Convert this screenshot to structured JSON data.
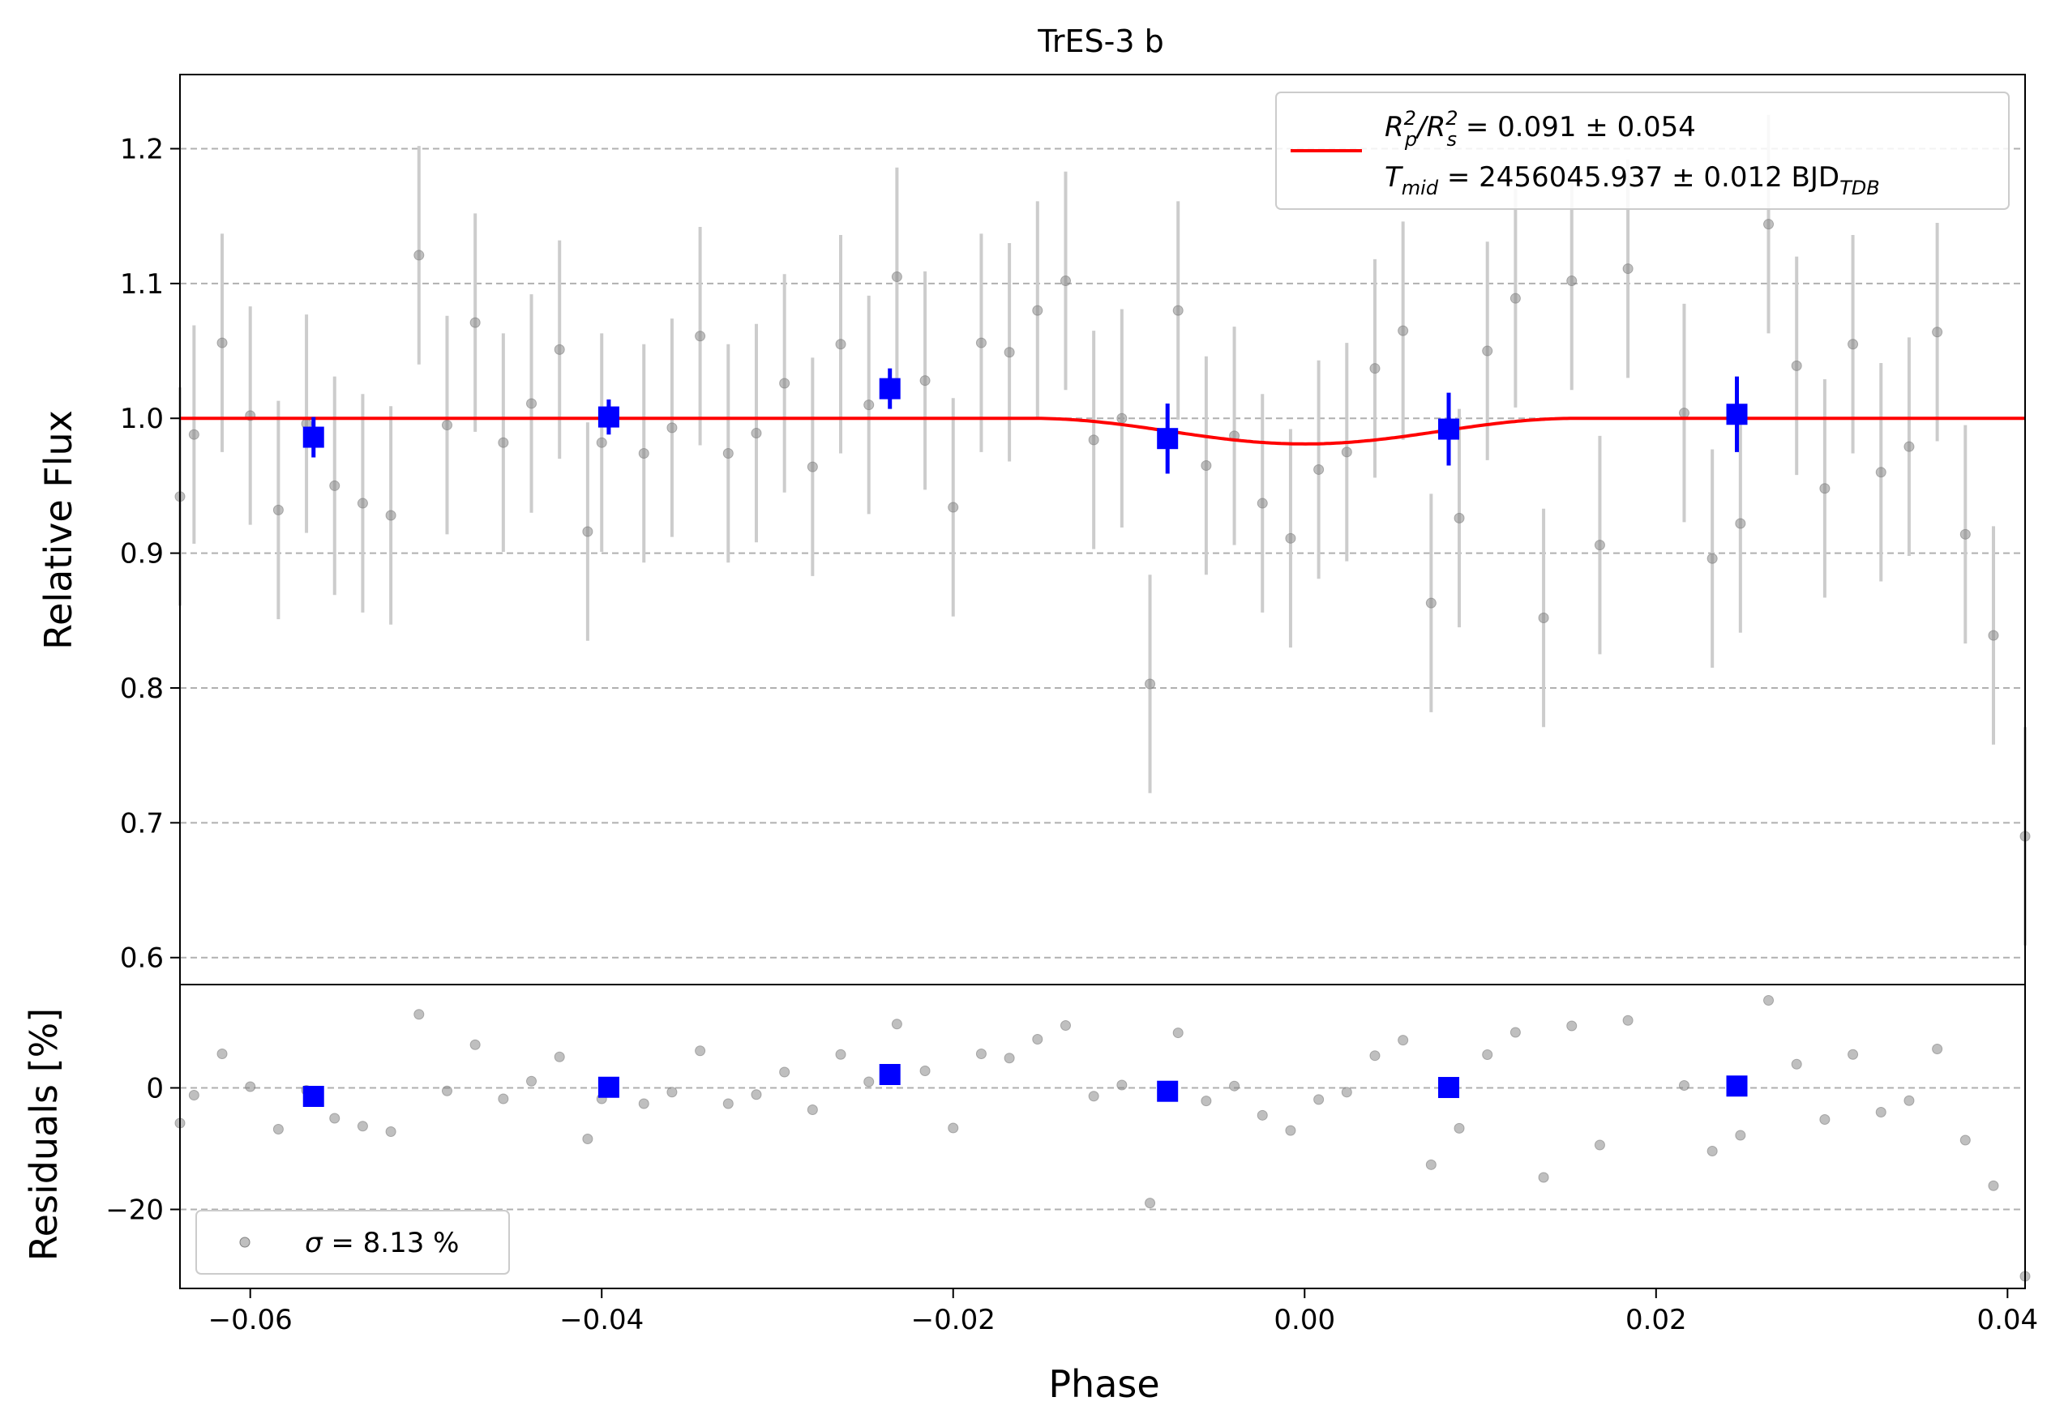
{
  "chart_data": [
    {
      "name": "flux-panel",
      "type": "scatter",
      "title": "TrES-3 b",
      "xlabel": "Phase",
      "ylabel": "Relative Flux",
      "xlim": [
        -0.064,
        0.041
      ],
      "ylim": [
        0.58,
        1.255
      ],
      "xticks": [
        -0.06,
        -0.04,
        -0.02,
        0.0,
        0.02,
        0.04
      ],
      "xtick_labels": [
        "−0.06",
        "−0.04",
        "−0.02",
        "0.00",
        "0.02",
        "0.04"
      ],
      "yticks": [
        0.6,
        0.7,
        0.8,
        0.9,
        1.0,
        1.1,
        1.2
      ],
      "ytick_labels": [
        "0.6",
        "0.7",
        "0.8",
        "0.9",
        "1.0",
        "1.1",
        "1.2"
      ],
      "grid": "horizontal dashed",
      "colors": {
        "data": "#808080",
        "errorbar": "#cccccc",
        "binned": "#0000ff",
        "model": "#ff0000",
        "grid": "#b0b0b0"
      },
      "legend": {
        "position": "top-right",
        "line1": {
          "label": "R",
          "sub1": "p",
          "sup1": "2",
          "slash": "/R",
          "sub2": "s",
          "sup2": "2",
          "value": " = 0.091 ± 0.054"
        },
        "line2": {
          "label": "T",
          "sub": "mid",
          "value": " = 2456045.937 ± 0.012 BJD",
          "unit_sub": "TDB"
        }
      },
      "model": {
        "baseline": 1.0,
        "depth": 0.019,
        "ingress_start": -0.0155,
        "egress_end": 0.0155,
        "center": 0.0
      },
      "points": {
        "x": [
          -0.064,
          -0.0632,
          -0.0616,
          -0.06,
          -0.0584,
          -0.0568,
          -0.0552,
          -0.0536,
          -0.052,
          -0.0504,
          -0.0488,
          -0.0472,
          -0.0456,
          -0.044,
          -0.0424,
          -0.0408,
          -0.04,
          -0.0376,
          -0.036,
          -0.0344,
          -0.0328,
          -0.0312,
          -0.0296,
          -0.028,
          -0.0264,
          -0.0248,
          -0.0232,
          -0.0216,
          -0.02,
          -0.0184,
          -0.0168,
          -0.0152,
          -0.0136,
          -0.012,
          -0.0104,
          -0.0088,
          -0.0072,
          -0.0056,
          -0.004,
          -0.0024,
          -0.0008,
          0.0008,
          0.0024,
          0.004,
          0.0056,
          0.0072,
          0.0088,
          0.0104,
          0.012,
          0.0136,
          0.0152,
          0.0168,
          0.0184,
          0.0216,
          0.0232,
          0.0248,
          0.0264,
          0.028,
          0.0296,
          0.0312,
          0.0328,
          0.0344,
          0.036,
          0.0376,
          0.0392,
          0.041
        ],
        "y": [
          0.942,
          0.988,
          1.056,
          1.002,
          0.932,
          0.996,
          0.95,
          0.937,
          0.928,
          1.121,
          0.995,
          1.071,
          0.982,
          1.011,
          1.051,
          0.916,
          0.982,
          0.974,
          0.993,
          1.061,
          0.974,
          0.989,
          1.026,
          0.964,
          1.055,
          1.01,
          1.105,
          1.028,
          0.934,
          1.056,
          1.049,
          1.08,
          1.102,
          0.984,
          1.0,
          0.803,
          1.08,
          0.965,
          0.987,
          0.937,
          0.911,
          0.962,
          0.975,
          1.037,
          1.065,
          0.863,
          0.926,
          1.05,
          1.089,
          0.852,
          1.102,
          0.906,
          1.111,
          1.004,
          0.896,
          0.922,
          1.144,
          1.039,
          0.948,
          1.055,
          0.96,
          0.979,
          1.064,
          0.914,
          0.839,
          0.69
        ],
        "yerr": 0.081
      },
      "binned": {
        "x": [
          -0.0564,
          -0.0396,
          -0.0236,
          -0.0078,
          0.0082,
          0.0246
        ],
        "y": [
          0.986,
          1.001,
          1.022,
          0.985,
          0.992,
          1.003
        ],
        "yerr": [
          0.015,
          0.013,
          0.015,
          0.026,
          0.027,
          0.028
        ]
      }
    },
    {
      "name": "residuals-panel",
      "type": "scatter",
      "xlabel": "Phase",
      "ylabel": "Residuals [%]",
      "xlim": [
        -0.064,
        0.041
      ],
      "ylim": [
        -33,
        17
      ],
      "yticks": [
        -20,
        0
      ],
      "ytick_labels": [
        "−20",
        "0"
      ],
      "grid": "horizontal dashed",
      "legend": {
        "position": "bottom-left",
        "label": "σ = 8.13 %",
        "symbol": "σ",
        "text": " = 8.13 %"
      },
      "points_note": "residual = (flux - model) * 100",
      "binned_note": "binned residuals in percent"
    }
  ]
}
